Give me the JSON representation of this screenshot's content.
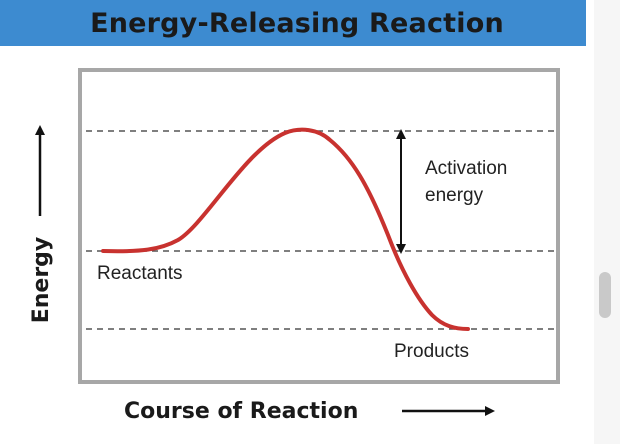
{
  "title": "Energy-Releasing Reaction",
  "labels": {
    "activation_line1": "Activation",
    "activation_line2": "energy",
    "reactants": "Reactants",
    "products": "Products"
  },
  "axes": {
    "y_label": "Energy",
    "x_label": "Course of Reaction"
  },
  "colors": {
    "banner": "#3d8bd0",
    "curve": "#c8322f",
    "frame": "#a7a7a7",
    "dashed": "#555555"
  }
}
